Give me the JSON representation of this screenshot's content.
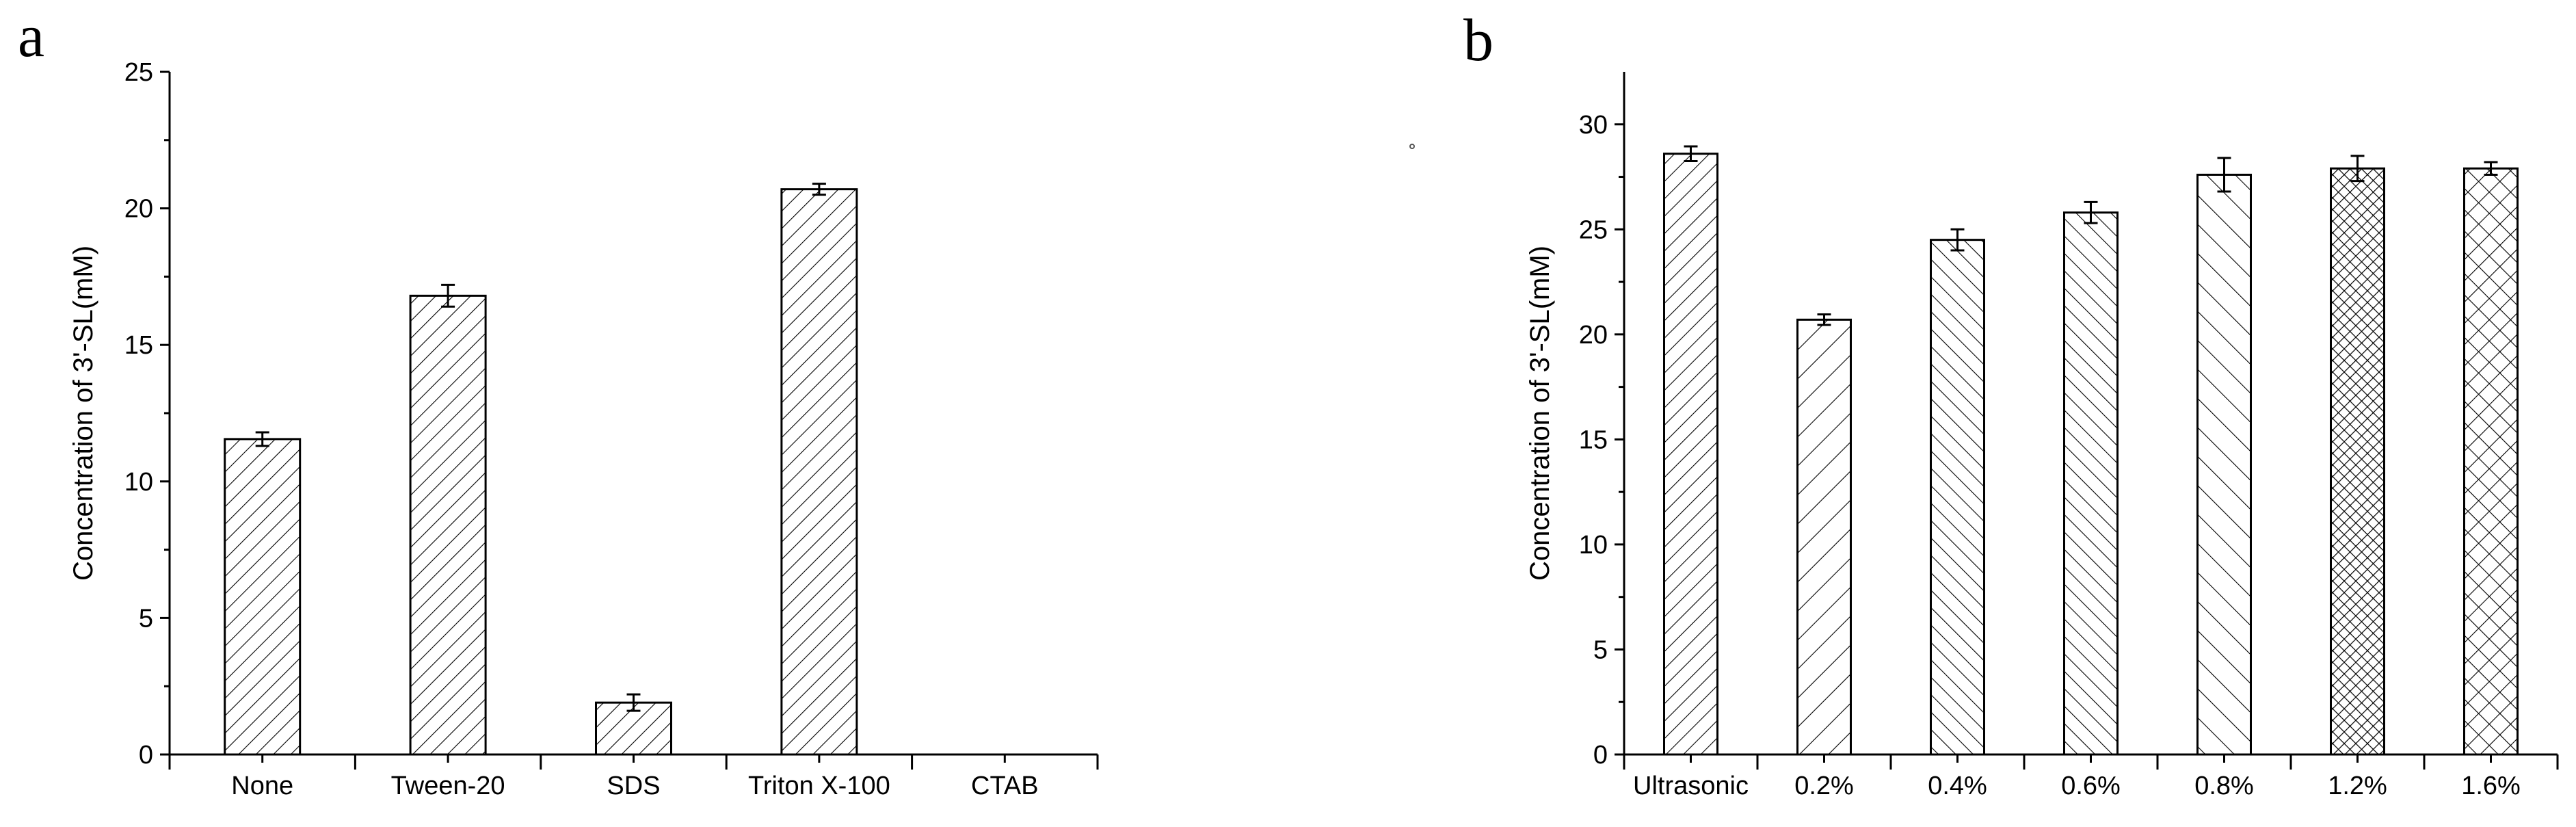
{
  "panel_labels": [
    "a",
    "b"
  ],
  "chart_data": [
    {
      "type": "bar",
      "panel": "a",
      "title": "",
      "xlabel": "",
      "ylabel": "Concentration of 3'-SL(mM)",
      "ylim": [
        0,
        25
      ],
      "yticks": [
        0,
        5,
        10,
        15,
        20,
        25
      ],
      "categories": [
        "None",
        "Tween-20",
        "SDS",
        "Triton X-100",
        "CTAB"
      ],
      "values": [
        11.55,
        16.8,
        1.9,
        20.7,
        0
      ],
      "errors": [
        0.25,
        0.4,
        0.3,
        0.2,
        0
      ],
      "patterns": [
        "diag-right-dense",
        "diag-right-dense",
        "diag-right-dense",
        "diag-right-dense",
        "none"
      ],
      "grid": false,
      "legend": "none"
    },
    {
      "type": "bar",
      "panel": "b",
      "title": "",
      "xlabel": "",
      "ylabel": "Concentration of 3'-SL(mM)",
      "ylim": [
        0,
        32.5
      ],
      "yticks": [
        0,
        5,
        10,
        15,
        20,
        25,
        30
      ],
      "categories": [
        "Ultrasonic",
        "0.2%",
        "0.4%",
        "0.6%",
        "0.8%",
        "1.2%",
        "1.6%"
      ],
      "values": [
        28.6,
        20.7,
        24.5,
        25.8,
        27.6,
        27.9,
        27.9
      ],
      "errors": [
        0.35,
        0.25,
        0.5,
        0.5,
        0.8,
        0.6,
        0.3
      ],
      "patterns": [
        "diag-right-dense",
        "diag-right-sparse",
        "diag-left-dense",
        "diag-left-dense",
        "diag-left-sparse",
        "crosshatch-dense",
        "crosshatch"
      ],
      "grid": false,
      "legend": "none"
    }
  ]
}
